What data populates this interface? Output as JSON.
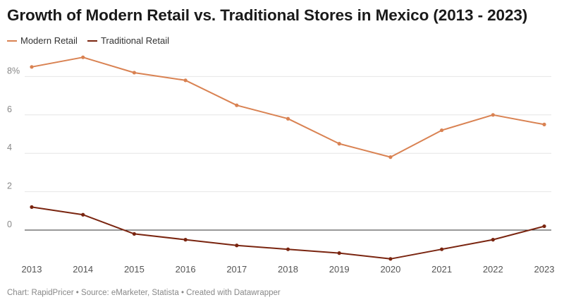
{
  "title": "Growth of Modern Retail vs. Traditional Stores in Mexico (2013 - 2023)",
  "footer": {
    "chart_credit": "Chart: RapidPricer",
    "source": "Source: eMarketer, Statista",
    "created_with": "Created with Datawrapper",
    "separator": "•"
  },
  "colors": {
    "modern": "#d98252",
    "traditional": "#7a2510",
    "grid": "#e6e6e6",
    "zero_line": "#333333"
  },
  "chart_data": {
    "type": "line",
    "title": "Growth of Modern Retail vs. Traditional Stores in Mexico (2013 - 2023)",
    "xlabel": "",
    "ylabel": "",
    "x": [
      "2013",
      "2014",
      "2015",
      "2016",
      "2017",
      "2018",
      "2019",
      "2020",
      "2021",
      "2022",
      "2023"
    ],
    "y_ticks": [
      0,
      2,
      4,
      6,
      8
    ],
    "y_tick_labels": [
      "0",
      "2",
      "4",
      "6",
      "8%"
    ],
    "ylim": [
      -1.5,
      9.5
    ],
    "grid": true,
    "legend_position": "top-left",
    "series": [
      {
        "name": "Modern Retail",
        "color": "#d98252",
        "values": [
          8.5,
          9.0,
          8.2,
          7.8,
          6.5,
          5.8,
          4.5,
          3.8,
          5.2,
          6.0,
          5.5
        ]
      },
      {
        "name": "Traditional Retail",
        "color": "#7a2510",
        "values": [
          1.2,
          0.8,
          -0.2,
          -0.5,
          -0.8,
          -1.0,
          -1.2,
          -1.5,
          -1.0,
          -0.5,
          0.2
        ]
      }
    ]
  }
}
